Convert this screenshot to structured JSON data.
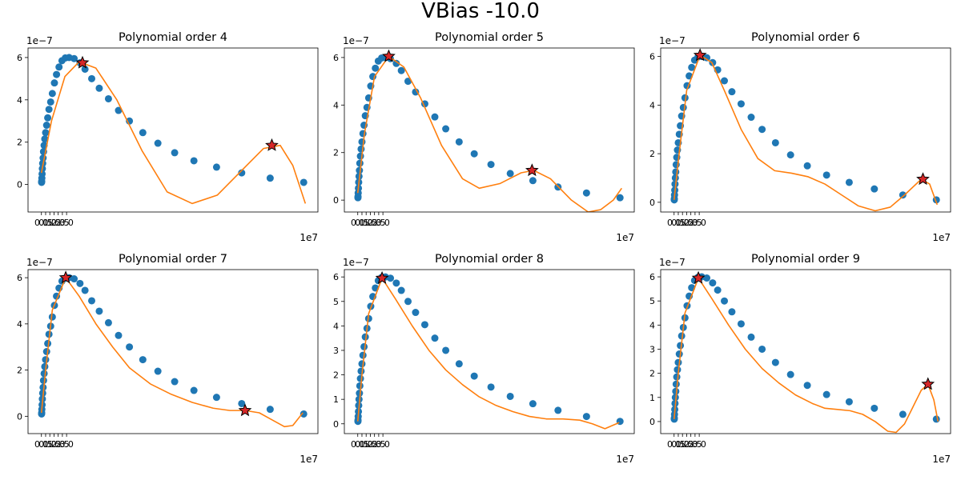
{
  "figure": {
    "suptitle": "VBias -10.0"
  },
  "colors": {
    "scatter": "#1f77b4",
    "fit": "#ff7f0e",
    "star_fill": "#d62728",
    "star_edge": "#000000"
  },
  "chart_data": [
    {
      "type": "scatter",
      "title": "Polynomial order 4",
      "xlim": [
        -1.6,
        33.0
      ],
      "ylim": [
        -1.3,
        6.45
      ],
      "x_offset_label": "1e7",
      "y_offset_label": "1e−7",
      "xticks": [
        0.0,
        0.5,
        1.0,
        1.5,
        2.0,
        2.5,
        3.0
      ],
      "xticklabels": [
        "0.0",
        "0.5",
        "1.0",
        "1.5",
        "2.0",
        "2.5",
        "3.0"
      ],
      "yticks": [
        0,
        2,
        4,
        6
      ],
      "yticklabels": [
        "0",
        "2",
        "4",
        "6"
      ],
      "series": [
        {
          "kind": "scatter",
          "x": [
            0.02,
            0.03,
            0.05,
            0.08,
            0.11,
            0.15,
            0.2,
            0.25,
            0.32,
            0.4,
            0.5,
            0.62,
            0.75,
            0.9,
            1.1,
            1.3,
            1.55,
            1.8,
            2.1,
            2.45,
            2.85,
            3.3,
            3.9,
            4.6,
            5.2,
            6.0,
            6.9,
            8.0,
            9.2,
            10.5,
            12.1,
            13.9,
            15.9,
            18.2,
            20.9,
            23.9,
            27.3,
            31.3
          ],
          "y": [
            0.1,
            0.15,
            0.3,
            0.5,
            0.75,
            1.0,
            1.25,
            1.55,
            1.85,
            2.15,
            2.45,
            2.8,
            3.15,
            3.55,
            3.9,
            4.3,
            4.8,
            5.2,
            5.55,
            5.85,
            5.98,
            6.0,
            5.95,
            5.75,
            5.45,
            5.0,
            4.55,
            4.05,
            3.5,
            3.0,
            2.45,
            1.95,
            1.5,
            1.12,
            0.82,
            0.55,
            0.3,
            0.1
          ]
        },
        {
          "kind": "fit",
          "x": [
            0.0,
            1.2,
            2.8,
            4.5,
            6.5,
            9.0,
            12.0,
            15.0,
            18.0,
            21.0,
            24.0,
            26.5,
            28.5,
            30.0,
            31.5
          ],
          "y": [
            0.55,
            3.0,
            5.1,
            5.8,
            5.5,
            4.0,
            1.6,
            -0.35,
            -0.9,
            -0.5,
            0.7,
            1.7,
            1.85,
            0.9,
            -0.9
          ]
        },
        {
          "kind": "star",
          "x": [
            4.9,
            27.5
          ],
          "y": [
            5.75,
            1.85
          ]
        }
      ]
    },
    {
      "type": "scatter",
      "title": "Polynomial order 5",
      "xlim": [
        -1.6,
        33.0
      ],
      "ylim": [
        -0.5,
        6.4
      ],
      "x_offset_label": "1e7",
      "y_offset_label": "1e−7",
      "xticks": [
        0.0,
        0.5,
        1.0,
        1.5,
        2.0,
        2.5,
        3.0
      ],
      "xticklabels": [
        "0.0",
        "0.5",
        "1.0",
        "1.5",
        "2.0",
        "2.5",
        "3.0"
      ],
      "yticks": [
        0,
        2,
        4,
        6
      ],
      "yticklabels": [
        "0",
        "2",
        "4",
        "6"
      ],
      "series": [
        {
          "kind": "scatter",
          "x": [
            0.02,
            0.03,
            0.05,
            0.08,
            0.11,
            0.15,
            0.2,
            0.25,
            0.32,
            0.4,
            0.5,
            0.62,
            0.75,
            0.9,
            1.1,
            1.3,
            1.55,
            1.8,
            2.1,
            2.45,
            2.85,
            3.3,
            3.9,
            4.6,
            5.2,
            6.0,
            6.9,
            8.0,
            9.2,
            10.5,
            12.1,
            13.9,
            15.9,
            18.2,
            20.9,
            23.9,
            27.3,
            31.3
          ],
          "y": [
            0.1,
            0.15,
            0.3,
            0.5,
            0.75,
            1.0,
            1.25,
            1.55,
            1.85,
            2.15,
            2.45,
            2.8,
            3.15,
            3.55,
            3.9,
            4.3,
            4.8,
            5.2,
            5.55,
            5.85,
            5.98,
            6.0,
            5.95,
            5.75,
            5.45,
            5.0,
            4.55,
            4.05,
            3.5,
            3.0,
            2.45,
            1.95,
            1.5,
            1.12,
            0.82,
            0.55,
            0.3,
            0.1
          ]
        },
        {
          "kind": "fit",
          "x": [
            0.0,
            0.8,
            2.0,
            3.7,
            5.5,
            7.5,
            10.0,
            12.5,
            14.5,
            17.0,
            19.5,
            21.0,
            23.0,
            25.5,
            27.5,
            29.0,
            30.5,
            31.5
          ],
          "y": [
            0.3,
            2.8,
            5.2,
            6.05,
            5.6,
            4.3,
            2.3,
            0.9,
            0.5,
            0.7,
            1.15,
            1.25,
            0.9,
            0.0,
            -0.5,
            -0.4,
            0.0,
            0.5
          ]
        },
        {
          "kind": "star",
          "x": [
            3.7,
            20.8
          ],
          "y": [
            6.05,
            1.25
          ]
        }
      ]
    },
    {
      "type": "scatter",
      "title": "Polynomial order 6",
      "xlim": [
        -1.6,
        33.0
      ],
      "ylim": [
        -0.4,
        6.35
      ],
      "x_offset_label": "1e7",
      "y_offset_label": "1e−7",
      "xticks": [
        0.0,
        0.5,
        1.0,
        1.5,
        2.0,
        2.5,
        3.0
      ],
      "xticklabels": [
        "0.0",
        "0.5",
        "1.0",
        "1.5",
        "2.0",
        "2.5",
        "3.0"
      ],
      "yticks": [
        0,
        2,
        4,
        6
      ],
      "yticklabels": [
        "0",
        "2",
        "4",
        "6"
      ],
      "series": [
        {
          "kind": "scatter",
          "x": [
            0.02,
            0.03,
            0.05,
            0.08,
            0.11,
            0.15,
            0.2,
            0.25,
            0.32,
            0.4,
            0.5,
            0.62,
            0.75,
            0.9,
            1.1,
            1.3,
            1.55,
            1.8,
            2.1,
            2.45,
            2.85,
            3.3,
            3.9,
            4.6,
            5.2,
            6.0,
            6.9,
            8.0,
            9.2,
            10.5,
            12.1,
            13.9,
            15.9,
            18.2,
            20.9,
            23.9,
            27.3,
            31.3
          ],
          "y": [
            0.1,
            0.15,
            0.3,
            0.5,
            0.75,
            1.0,
            1.25,
            1.55,
            1.85,
            2.15,
            2.45,
            2.8,
            3.15,
            3.55,
            3.9,
            4.3,
            4.8,
            5.2,
            5.55,
            5.85,
            5.98,
            6.0,
            5.95,
            5.75,
            5.45,
            5.0,
            4.55,
            4.05,
            3.5,
            3.0,
            2.45,
            1.95,
            1.5,
            1.12,
            0.82,
            0.55,
            0.3,
            0.1
          ]
        },
        {
          "kind": "fit",
          "x": [
            0.0,
            0.6,
            1.5,
            3.1,
            4.5,
            6.0,
            8.0,
            10.0,
            12.0,
            14.0,
            16.0,
            18.0,
            20.0,
            22.0,
            24.0,
            25.8,
            27.5,
            29.5,
            30.5,
            31.4
          ],
          "y": [
            0.1,
            2.0,
            4.6,
            6.05,
            5.75,
            4.6,
            3.0,
            1.8,
            1.3,
            1.2,
            1.05,
            0.75,
            0.3,
            -0.15,
            -0.35,
            -0.2,
            0.3,
            0.95,
            0.75,
            -0.1
          ]
        },
        {
          "kind": "star",
          "x": [
            3.1,
            29.7
          ],
          "y": [
            6.05,
            0.95
          ]
        }
      ]
    },
    {
      "type": "scatter",
      "title": "Polynomial order 7",
      "xlim": [
        -1.6,
        33.0
      ],
      "ylim": [
        -0.75,
        6.35
      ],
      "x_offset_label": "1e7",
      "y_offset_label": "1e−7",
      "xticks": [
        0.0,
        0.5,
        1.0,
        1.5,
        2.0,
        2.5,
        3.0
      ],
      "xticklabels": [
        "0.0",
        "0.5",
        "1.0",
        "1.5",
        "2.0",
        "2.5",
        "3.0"
      ],
      "yticks": [
        0,
        2,
        4,
        6
      ],
      "yticklabels": [
        "0",
        "2",
        "4",
        "6"
      ],
      "series": [
        {
          "kind": "scatter",
          "x": [
            0.02,
            0.03,
            0.05,
            0.08,
            0.11,
            0.15,
            0.2,
            0.25,
            0.32,
            0.4,
            0.5,
            0.62,
            0.75,
            0.9,
            1.1,
            1.3,
            1.55,
            1.8,
            2.1,
            2.45,
            2.85,
            3.3,
            3.9,
            4.6,
            5.2,
            6.0,
            6.9,
            8.0,
            9.2,
            10.5,
            12.1,
            13.9,
            15.9,
            18.2,
            20.9,
            23.9,
            27.3,
            31.3
          ],
          "y": [
            0.1,
            0.15,
            0.3,
            0.5,
            0.75,
            1.0,
            1.25,
            1.55,
            1.85,
            2.15,
            2.45,
            2.8,
            3.15,
            3.55,
            3.9,
            4.3,
            4.8,
            5.2,
            5.55,
            5.85,
            5.98,
            6.0,
            5.95,
            5.75,
            5.45,
            5.0,
            4.55,
            4.05,
            3.5,
            3.0,
            2.45,
            1.95,
            1.5,
            1.12,
            0.82,
            0.55,
            0.3,
            0.1
          ]
        },
        {
          "kind": "fit",
          "x": [
            0.0,
            0.5,
            1.3,
            2.9,
            4.5,
            6.5,
            8.5,
            10.5,
            13.0,
            15.5,
            18.0,
            20.5,
            22.5,
            24.3,
            26.0,
            27.5,
            29.0,
            30.0,
            31.2
          ],
          "y": [
            0.15,
            2.0,
            4.6,
            6.0,
            5.2,
            4.0,
            3.0,
            2.1,
            1.4,
            0.95,
            0.6,
            0.35,
            0.25,
            0.25,
            0.15,
            -0.15,
            -0.45,
            -0.4,
            0.15
          ]
        },
        {
          "kind": "star",
          "x": [
            2.9,
            24.3
          ],
          "y": [
            6.0,
            0.25
          ]
        }
      ]
    },
    {
      "type": "scatter",
      "title": "Polynomial order 8",
      "xlim": [
        -1.6,
        33.0
      ],
      "ylim": [
        -0.4,
        6.3
      ],
      "x_offset_label": "1e7",
      "y_offset_label": "1e−7",
      "xticks": [
        0.0,
        0.5,
        1.0,
        1.5,
        2.0,
        2.5,
        3.0
      ],
      "xticklabels": [
        "0.0",
        "0.5",
        "1.0",
        "1.5",
        "2.0",
        "2.5",
        "3.0"
      ],
      "yticks": [
        0,
        1,
        2,
        3,
        4,
        5,
        6
      ],
      "yticklabels": [
        "0",
        "1",
        "2",
        "3",
        "4",
        "5",
        "6"
      ],
      "series": [
        {
          "kind": "scatter",
          "x": [
            0.02,
            0.03,
            0.05,
            0.08,
            0.11,
            0.15,
            0.2,
            0.25,
            0.32,
            0.4,
            0.5,
            0.62,
            0.75,
            0.9,
            1.1,
            1.3,
            1.55,
            1.8,
            2.1,
            2.45,
            2.85,
            3.3,
            3.9,
            4.6,
            5.2,
            6.0,
            6.9,
            8.0,
            9.2,
            10.5,
            12.1,
            13.9,
            15.9,
            18.2,
            20.9,
            23.9,
            27.3,
            31.3
          ],
          "y": [
            0.1,
            0.15,
            0.3,
            0.5,
            0.75,
            1.0,
            1.25,
            1.55,
            1.85,
            2.15,
            2.45,
            2.8,
            3.15,
            3.55,
            3.9,
            4.3,
            4.8,
            5.2,
            5.55,
            5.85,
            5.98,
            6.0,
            5.95,
            5.75,
            5.45,
            5.0,
            4.55,
            4.05,
            3.5,
            3.0,
            2.45,
            1.95,
            1.5,
            1.12,
            0.82,
            0.55,
            0.3,
            0.1
          ]
        },
        {
          "kind": "fit",
          "x": [
            0.0,
            0.5,
            1.3,
            2.9,
            4.5,
            6.5,
            8.5,
            10.5,
            12.5,
            14.5,
            16.5,
            18.5,
            20.5,
            22.5,
            24.5,
            26.5,
            28.0,
            29.5,
            31.2
          ],
          "y": [
            0.1,
            2.0,
            4.5,
            5.95,
            5.1,
            4.0,
            3.0,
            2.2,
            1.6,
            1.1,
            0.75,
            0.5,
            0.3,
            0.2,
            0.2,
            0.15,
            0.0,
            -0.2,
            0.05
          ]
        },
        {
          "kind": "star",
          "x": [
            2.9
          ],
          "y": [
            5.95
          ]
        }
      ]
    },
    {
      "type": "scatter",
      "title": "Polynomial order 9",
      "xlim": [
        -1.6,
        33.0
      ],
      "ylim": [
        -0.5,
        6.3
      ],
      "x_offset_label": "1e7",
      "y_offset_label": "1e−7",
      "xticks": [
        0.0,
        0.5,
        1.0,
        1.5,
        2.0,
        2.5,
        3.0
      ],
      "xticklabels": [
        "0.0",
        "0.5",
        "1.0",
        "1.5",
        "2.0",
        "2.5",
        "3.0"
      ],
      "yticks": [
        0,
        1,
        2,
        3,
        4,
        5,
        6
      ],
      "yticklabels": [
        "0",
        "1",
        "2",
        "3",
        "4",
        "5",
        "6"
      ],
      "series": [
        {
          "kind": "scatter",
          "x": [
            0.02,
            0.03,
            0.05,
            0.08,
            0.11,
            0.15,
            0.2,
            0.25,
            0.32,
            0.4,
            0.5,
            0.62,
            0.75,
            0.9,
            1.1,
            1.3,
            1.55,
            1.8,
            2.1,
            2.45,
            2.85,
            3.3,
            3.9,
            4.6,
            5.2,
            6.0,
            6.9,
            8.0,
            9.2,
            10.5,
            12.1,
            13.9,
            15.9,
            18.2,
            20.9,
            23.9,
            27.3,
            31.3
          ],
          "y": [
            0.1,
            0.15,
            0.3,
            0.5,
            0.75,
            1.0,
            1.25,
            1.55,
            1.85,
            2.15,
            2.45,
            2.8,
            3.15,
            3.55,
            3.9,
            4.3,
            4.8,
            5.2,
            5.55,
            5.85,
            5.98,
            6.0,
            5.95,
            5.75,
            5.45,
            5.0,
            4.55,
            4.05,
            3.5,
            3.0,
            2.45,
            1.95,
            1.5,
            1.12,
            0.82,
            0.55,
            0.3,
            0.1
          ]
        },
        {
          "kind": "fit",
          "x": [
            0.0,
            0.5,
            1.3,
            2.9,
            4.5,
            6.5,
            8.5,
            10.5,
            12.5,
            14.5,
            16.5,
            18.0,
            19.5,
            21.0,
            22.5,
            24.0,
            25.5,
            26.5,
            27.5,
            28.5,
            29.5,
            30.3,
            31.0,
            31.5
          ],
          "y": [
            0.1,
            2.0,
            4.5,
            5.95,
            5.1,
            4.0,
            3.0,
            2.2,
            1.6,
            1.1,
            0.75,
            0.55,
            0.5,
            0.45,
            0.3,
            0.0,
            -0.4,
            -0.45,
            -0.1,
            0.6,
            1.3,
            1.55,
            0.9,
            0.0
          ]
        },
        {
          "kind": "star",
          "x": [
            2.9,
            30.3
          ],
          "y": [
            5.95,
            1.55
          ]
        }
      ]
    }
  ]
}
